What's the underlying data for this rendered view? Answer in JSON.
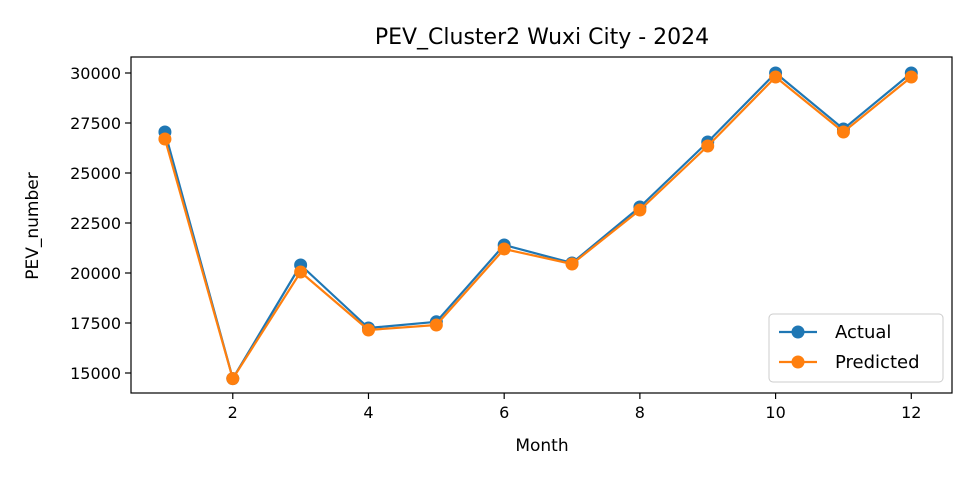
{
  "chart_data": {
    "type": "line",
    "title": "PEV_Cluster2 Wuxi City - 2024",
    "xlabel": "Month",
    "ylabel": "PEV_number",
    "x": [
      1,
      2,
      3,
      4,
      5,
      6,
      7,
      8,
      9,
      10,
      11,
      12
    ],
    "xlim": [
      0.5,
      12.6
    ],
    "ylim": [
      14000,
      30800
    ],
    "xticks": [
      2,
      4,
      6,
      8,
      10,
      12
    ],
    "yticks": [
      15000,
      17500,
      20000,
      22500,
      25000,
      27500,
      30000
    ],
    "grid": false,
    "legend_position": "lower-right",
    "series": [
      {
        "name": "Actual",
        "color": "#1f77b4",
        "values": [
          27050,
          14720,
          20400,
          17250,
          17560,
          21400,
          20500,
          23300,
          26550,
          30000,
          27200,
          30000
        ]
      },
      {
        "name": "Predicted",
        "color": "#ff7f0e",
        "values": [
          26700,
          14720,
          20050,
          17150,
          17400,
          21200,
          20450,
          23150,
          26350,
          29800,
          27050,
          29800
        ]
      }
    ]
  }
}
